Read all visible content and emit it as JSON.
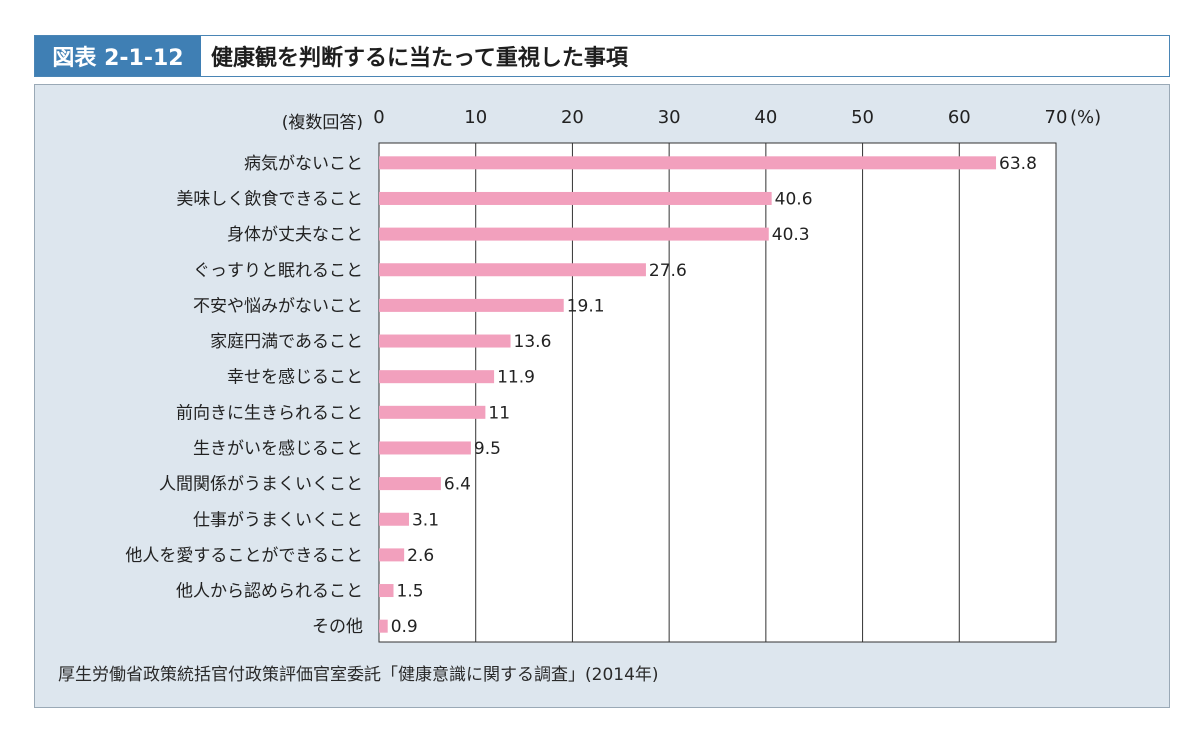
{
  "figure": {
    "label": "図表 2-1-12",
    "title": "健康観を判断するに当たって重視した事項"
  },
  "source": "厚生労働省政策統括官付政策評価官室委託「健康意識に関する調査」(2014年)",
  "colors": {
    "bar": "#f2a0bd",
    "panel_bg": "#dde6ee",
    "label_bg": "#3f7fb4",
    "grid": "#333333"
  },
  "chart_data": {
    "type": "bar",
    "orientation": "horizontal",
    "note": "(複数回答)",
    "unit": "(%)",
    "xlim": [
      0,
      70
    ],
    "xticks": [
      0,
      10,
      20,
      30,
      40,
      50,
      60,
      70
    ],
    "categories": [
      "病気がないこと",
      "美味しく飲食できること",
      "身体が丈夫なこと",
      "ぐっすりと眠れること",
      "不安や悩みがないこと",
      "家庭円満であること",
      "幸せを感じること",
      "前向きに生きられること",
      "生きがいを感じること",
      "人間関係がうまくいくこと",
      "仕事がうまくいくこと",
      "他人を愛することができること",
      "他人から認められること",
      "その他"
    ],
    "values": [
      63.8,
      40.6,
      40.3,
      27.6,
      19.1,
      13.6,
      11.9,
      11,
      9.5,
      6.4,
      3.1,
      2.6,
      1.5,
      0.9
    ],
    "value_labels": [
      "63.8",
      "40.6",
      "40.3",
      "27.6",
      "19.1",
      "13.6",
      "11.9",
      "11",
      "9.5",
      "6.4",
      "3.1",
      "2.6",
      "1.5",
      "0.9"
    ]
  }
}
